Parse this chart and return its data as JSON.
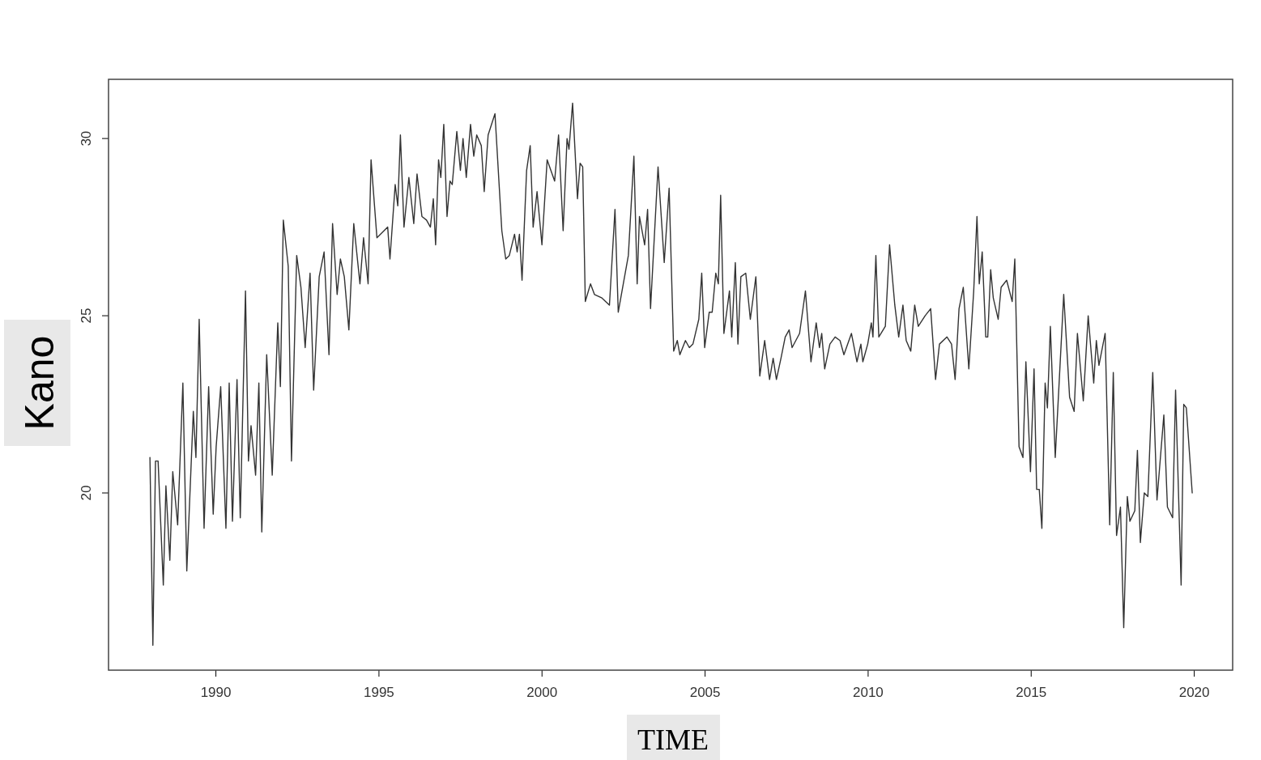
{
  "chart_data": {
    "type": "line",
    "xlabel": "TIME",
    "ylabel": "Kano",
    "xlim": [
      1986.72,
      2021.19
    ],
    "ylim": [
      15.0,
      31.67
    ],
    "xticks": [
      1990,
      1995,
      2000,
      2005,
      2010,
      2015,
      2020
    ],
    "yticks": [
      20,
      25,
      30
    ],
    "grid": false,
    "legend": false,
    "marker": "none",
    "line_style": "solid",
    "series": [
      {
        "color": "#333333",
        "x": [
          1987.99,
          1988.08,
          1988.16,
          1988.24,
          1988.4,
          1988.48,
          1988.6,
          1988.69,
          1988.84,
          1989.0,
          1989.12,
          1989.32,
          1989.4,
          1989.5,
          1989.65,
          1989.79,
          1989.93,
          1990.02,
          1990.16,
          1990.32,
          1990.42,
          1990.52,
          1990.66,
          1990.76,
          1990.92,
          1991.01,
          1991.09,
          1991.23,
          1991.33,
          1991.42,
          1991.57,
          1991.74,
          1991.91,
          1991.99,
          1992.08,
          1992.23,
          1992.33,
          1992.49,
          1992.62,
          1992.75,
          1992.9,
          1993.01,
          1993.18,
          1993.33,
          1993.48,
          1993.59,
          1993.73,
          1993.83,
          1993.95,
          1994.09,
          1994.24,
          1994.43,
          1994.54,
          1994.68,
          1994.77,
          1994.95,
          1995.28,
          1995.35,
          1995.51,
          1995.59,
          1995.67,
          1995.78,
          1995.93,
          1996.08,
          1996.18,
          1996.33,
          1996.47,
          1996.59,
          1996.68,
          1996.75,
          1996.84,
          1996.91,
          1997.0,
          1997.1,
          1997.19,
          1997.26,
          1997.4,
          1997.51,
          1997.59,
          1997.69,
          1997.82,
          1997.92,
          1998.01,
          1998.15,
          1998.24,
          1998.36,
          1998.57,
          1998.78,
          1998.9,
          1999.01,
          1999.17,
          1999.25,
          1999.32,
          1999.4,
          1999.54,
          1999.65,
          1999.74,
          1999.86,
          2000.01,
          2000.17,
          2000.4,
          2000.52,
          2000.66,
          2000.78,
          2000.84,
          2000.95,
          2001.1,
          2001.18,
          2001.26,
          2001.34,
          2001.5,
          2001.62,
          2001.85,
          2002.08,
          2002.25,
          2002.35,
          2002.66,
          2002.83,
          2002.93,
          2003.0,
          2003.16,
          2003.25,
          2003.34,
          2003.57,
          2003.76,
          2003.91,
          2004.05,
          2004.16,
          2004.24,
          2004.41,
          2004.53,
          2004.64,
          2004.82,
          2004.91,
          2005.0,
          2005.14,
          2005.23,
          2005.34,
          2005.42,
          2005.49,
          2005.59,
          2005.76,
          2005.83,
          2005.94,
          2006.02,
          2006.11,
          2006.26,
          2006.4,
          2006.57,
          2006.69,
          2006.84,
          2006.99,
          2007.1,
          2007.2,
          2007.34,
          2007.47,
          2007.59,
          2007.68,
          2007.91,
          2008.09,
          2008.26,
          2008.42,
          2008.52,
          2008.59,
          2008.68,
          2008.84,
          2009.0,
          2009.15,
          2009.27,
          2009.5,
          2009.67,
          2009.79,
          2009.85,
          2010.0,
          2010.11,
          2010.16,
          2010.25,
          2010.34,
          2010.54,
          2010.67,
          2010.83,
          2010.95,
          2011.08,
          2011.18,
          2011.32,
          2011.44,
          2011.55,
          2011.76,
          2011.93,
          2012.08,
          2012.2,
          2012.43,
          2012.57,
          2012.68,
          2012.8,
          2012.93,
          2013.1,
          2013.25,
          2013.35,
          2013.42,
          2013.51,
          2013.62,
          2013.68,
          2013.77,
          2013.85,
          2014.0,
          2014.09,
          2014.26,
          2014.43,
          2014.51,
          2014.64,
          2014.76,
          2014.85,
          2014.99,
          2015.1,
          2015.18,
          2015.26,
          2015.34,
          2015.44,
          2015.51,
          2015.6,
          2015.75,
          2016.01,
          2016.19,
          2016.33,
          2016.43,
          2016.61,
          2016.76,
          2016.93,
          2017.01,
          2017.09,
          2017.28,
          2017.42,
          2017.53,
          2017.63,
          2017.75,
          2017.85,
          2017.96,
          2018.04,
          2018.19,
          2018.27,
          2018.36,
          2018.48,
          2018.59,
          2018.74,
          2018.87,
          2019.08,
          2019.19,
          2019.35,
          2019.44,
          2019.61,
          2019.69,
          2019.77,
          2019.95
        ],
        "values": [
          21.0,
          15.7,
          20.9,
          20.9,
          17.4,
          20.2,
          18.1,
          20.6,
          19.1,
          23.1,
          17.8,
          22.3,
          21.0,
          24.9,
          19.0,
          23.0,
          19.4,
          21.3,
          23.0,
          19.0,
          23.1,
          19.2,
          23.2,
          19.3,
          25.7,
          20.9,
          21.9,
          20.5,
          23.1,
          18.9,
          23.9,
          20.5,
          24.8,
          23.0,
          27.7,
          26.4,
          20.9,
          26.7,
          25.8,
          24.1,
          26.2,
          22.9,
          26.1,
          26.8,
          23.9,
          27.6,
          25.6,
          26.6,
          26.1,
          24.6,
          27.6,
          25.9,
          27.2,
          25.9,
          29.4,
          27.2,
          27.5,
          26.6,
          28.7,
          28.1,
          30.1,
          27.5,
          28.9,
          27.6,
          29.0,
          27.8,
          27.7,
          27.5,
          28.3,
          27.0,
          29.4,
          28.9,
          30.4,
          27.8,
          28.8,
          28.7,
          30.2,
          29.1,
          30.0,
          28.9,
          30.4,
          29.5,
          30.1,
          29.8,
          28.5,
          30.1,
          30.7,
          27.4,
          26.6,
          26.7,
          27.3,
          26.8,
          27.3,
          26.0,
          29.1,
          29.8,
          27.5,
          28.5,
          27.0,
          29.4,
          28.8,
          30.1,
          27.4,
          30.0,
          29.7,
          31.0,
          28.3,
          29.3,
          29.2,
          25.4,
          25.9,
          25.6,
          25.5,
          25.3,
          28.0,
          25.1,
          26.7,
          29.5,
          25.9,
          27.8,
          27.0,
          28.0,
          25.2,
          29.2,
          26.5,
          28.6,
          24.0,
          24.3,
          23.9,
          24.3,
          24.1,
          24.2,
          24.9,
          26.2,
          24.1,
          25.1,
          25.1,
          26.2,
          25.9,
          28.4,
          24.5,
          25.7,
          24.4,
          26.5,
          24.2,
          26.1,
          26.2,
          24.9,
          26.1,
          23.3,
          24.3,
          23.2,
          23.8,
          23.2,
          23.8,
          24.4,
          24.6,
          24.1,
          24.5,
          25.7,
          23.7,
          24.8,
          24.1,
          24.5,
          23.5,
          24.2,
          24.4,
          24.3,
          23.9,
          24.5,
          23.7,
          24.2,
          23.7,
          24.2,
          24.8,
          24.4,
          26.7,
          24.4,
          24.7,
          27.0,
          25.3,
          24.4,
          25.3,
          24.3,
          24.0,
          25.3,
          24.7,
          25.0,
          25.2,
          23.2,
          24.2,
          24.4,
          24.2,
          23.2,
          25.2,
          25.8,
          23.5,
          25.7,
          27.8,
          25.9,
          26.8,
          24.4,
          24.4,
          26.3,
          25.5,
          24.9,
          25.8,
          26.0,
          25.4,
          26.6,
          21.3,
          21.0,
          23.7,
          20.6,
          23.5,
          20.1,
          20.1,
          19.0,
          23.1,
          22.4,
          24.7,
          21.0,
          25.6,
          22.7,
          22.3,
          24.5,
          22.6,
          25.0,
          23.1,
          24.3,
          23.6,
          24.5,
          19.1,
          23.4,
          18.8,
          19.6,
          16.2,
          19.9,
          19.2,
          19.5,
          21.2,
          18.6,
          20.0,
          19.9,
          23.4,
          19.8,
          22.2,
          19.6,
          19.3,
          22.9,
          17.4,
          22.5,
          22.4,
          20.0
        ]
      }
    ]
  }
}
